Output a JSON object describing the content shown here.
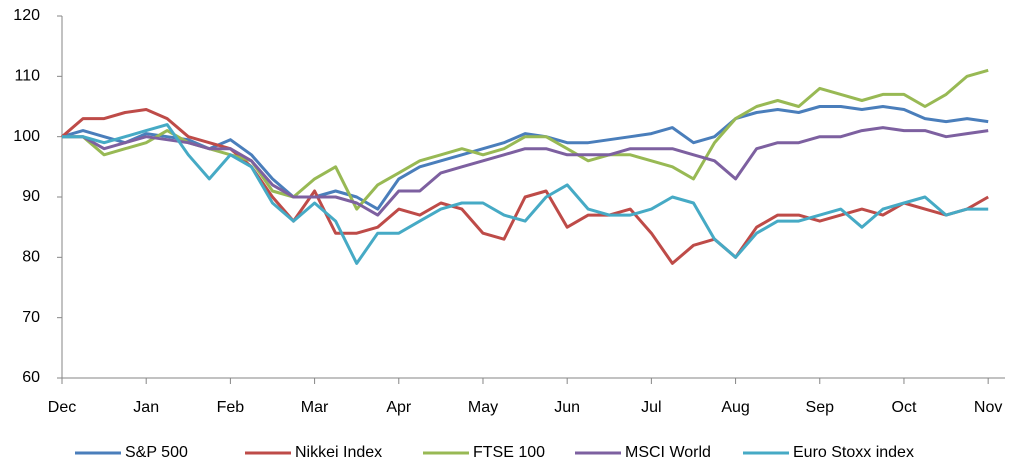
{
  "chart_data": {
    "type": "line",
    "x": [
      0,
      0.25,
      0.5,
      0.75,
      1,
      1.25,
      1.5,
      1.75,
      2,
      2.25,
      2.5,
      2.75,
      3,
      3.25,
      3.5,
      3.75,
      4,
      4.25,
      4.5,
      4.75,
      5,
      5.25,
      5.5,
      5.75,
      6,
      6.25,
      6.5,
      6.75,
      7,
      7.25,
      7.5,
      7.75,
      8,
      8.25,
      8.5,
      8.75,
      9,
      9.25,
      9.5,
      9.75,
      10,
      10.25,
      10.5,
      10.75,
      11
    ],
    "xlim": [
      0,
      11.2
    ],
    "xticks": [
      {
        "value": 0,
        "label": "Dec"
      },
      {
        "value": 1,
        "label": "Jan"
      },
      {
        "value": 2,
        "label": "Feb"
      },
      {
        "value": 3,
        "label": "Mar"
      },
      {
        "value": 4,
        "label": "Apr"
      },
      {
        "value": 5,
        "label": "May"
      },
      {
        "value": 6,
        "label": "Jun"
      },
      {
        "value": 7,
        "label": "Jul"
      },
      {
        "value": 8,
        "label": "Aug"
      },
      {
        "value": 9,
        "label": "Sep"
      },
      {
        "value": 10,
        "label": "Oct"
      },
      {
        "value": 11,
        "label": "Nov"
      }
    ],
    "ylim": [
      60,
      120
    ],
    "yticks": [
      60,
      70,
      80,
      90,
      100,
      110,
      120
    ],
    "grid": false,
    "legend": "bottom",
    "series": [
      {
        "name": "S&P 500",
        "color": "#4a7ebb",
        "values": [
          100,
          101,
          100,
          99,
          100.5,
          100,
          99.5,
          98,
          99.5,
          97,
          93,
          90,
          90,
          91,
          90,
          88,
          93,
          95,
          96,
          97,
          98,
          99,
          100.5,
          100,
          99,
          99,
          99.5,
          100,
          100.5,
          101.5,
          99,
          100,
          103,
          104,
          104.5,
          104,
          105,
          105,
          104.5,
          105,
          104.5,
          103,
          102.5,
          103,
          102.5
        ]
      },
      {
        "name": "Nikkei Index",
        "color": "#be4b48",
        "values": [
          100,
          103,
          103,
          104,
          104.5,
          103,
          100,
          99,
          98,
          95,
          90,
          86,
          91,
          84,
          84,
          85,
          88,
          87,
          89,
          88,
          84,
          83,
          90,
          91,
          85,
          87,
          87,
          88,
          84,
          79,
          82,
          83,
          80,
          85,
          87,
          87,
          86,
          87,
          88,
          87,
          89,
          88,
          87,
          88,
          90
        ]
      },
      {
        "name": "FTSE 100",
        "color": "#98b954",
        "values": [
          100,
          100,
          97,
          98,
          99,
          101,
          99,
          98,
          97,
          96,
          91,
          90,
          93,
          95,
          88,
          92,
          94,
          96,
          97,
          98,
          97,
          98,
          100,
          100,
          98,
          96,
          97,
          97,
          96,
          95,
          93,
          99,
          103,
          105,
          106,
          105,
          108,
          107,
          106,
          107,
          107,
          105,
          107,
          110,
          111
        ]
      },
      {
        "name": "MSCI World",
        "color": "#7d60a0",
        "values": [
          100,
          100,
          98,
          99,
          100,
          99.5,
          99,
          98,
          98,
          96,
          92,
          90,
          90,
          90,
          89,
          87,
          91,
          91,
          94,
          95,
          96,
          97,
          98,
          98,
          97,
          97,
          97,
          98,
          98,
          98,
          97,
          96,
          93,
          98,
          99,
          99,
          100,
          100,
          101,
          101.5,
          101,
          101,
          100,
          100.5,
          101
        ]
      },
      {
        "name": "Euro Stoxx index",
        "color": "#46aac5",
        "values": [
          100,
          100,
          99,
          100,
          101,
          102,
          97,
          93,
          97,
          95,
          89,
          86,
          89,
          86,
          79,
          84,
          84,
          86,
          88,
          89,
          89,
          87,
          86,
          90,
          92,
          88,
          87,
          87,
          88,
          90,
          89,
          83,
          80,
          84,
          86,
          86,
          87,
          88,
          85,
          88,
          89,
          90,
          87,
          88,
          88
        ]
      }
    ]
  }
}
